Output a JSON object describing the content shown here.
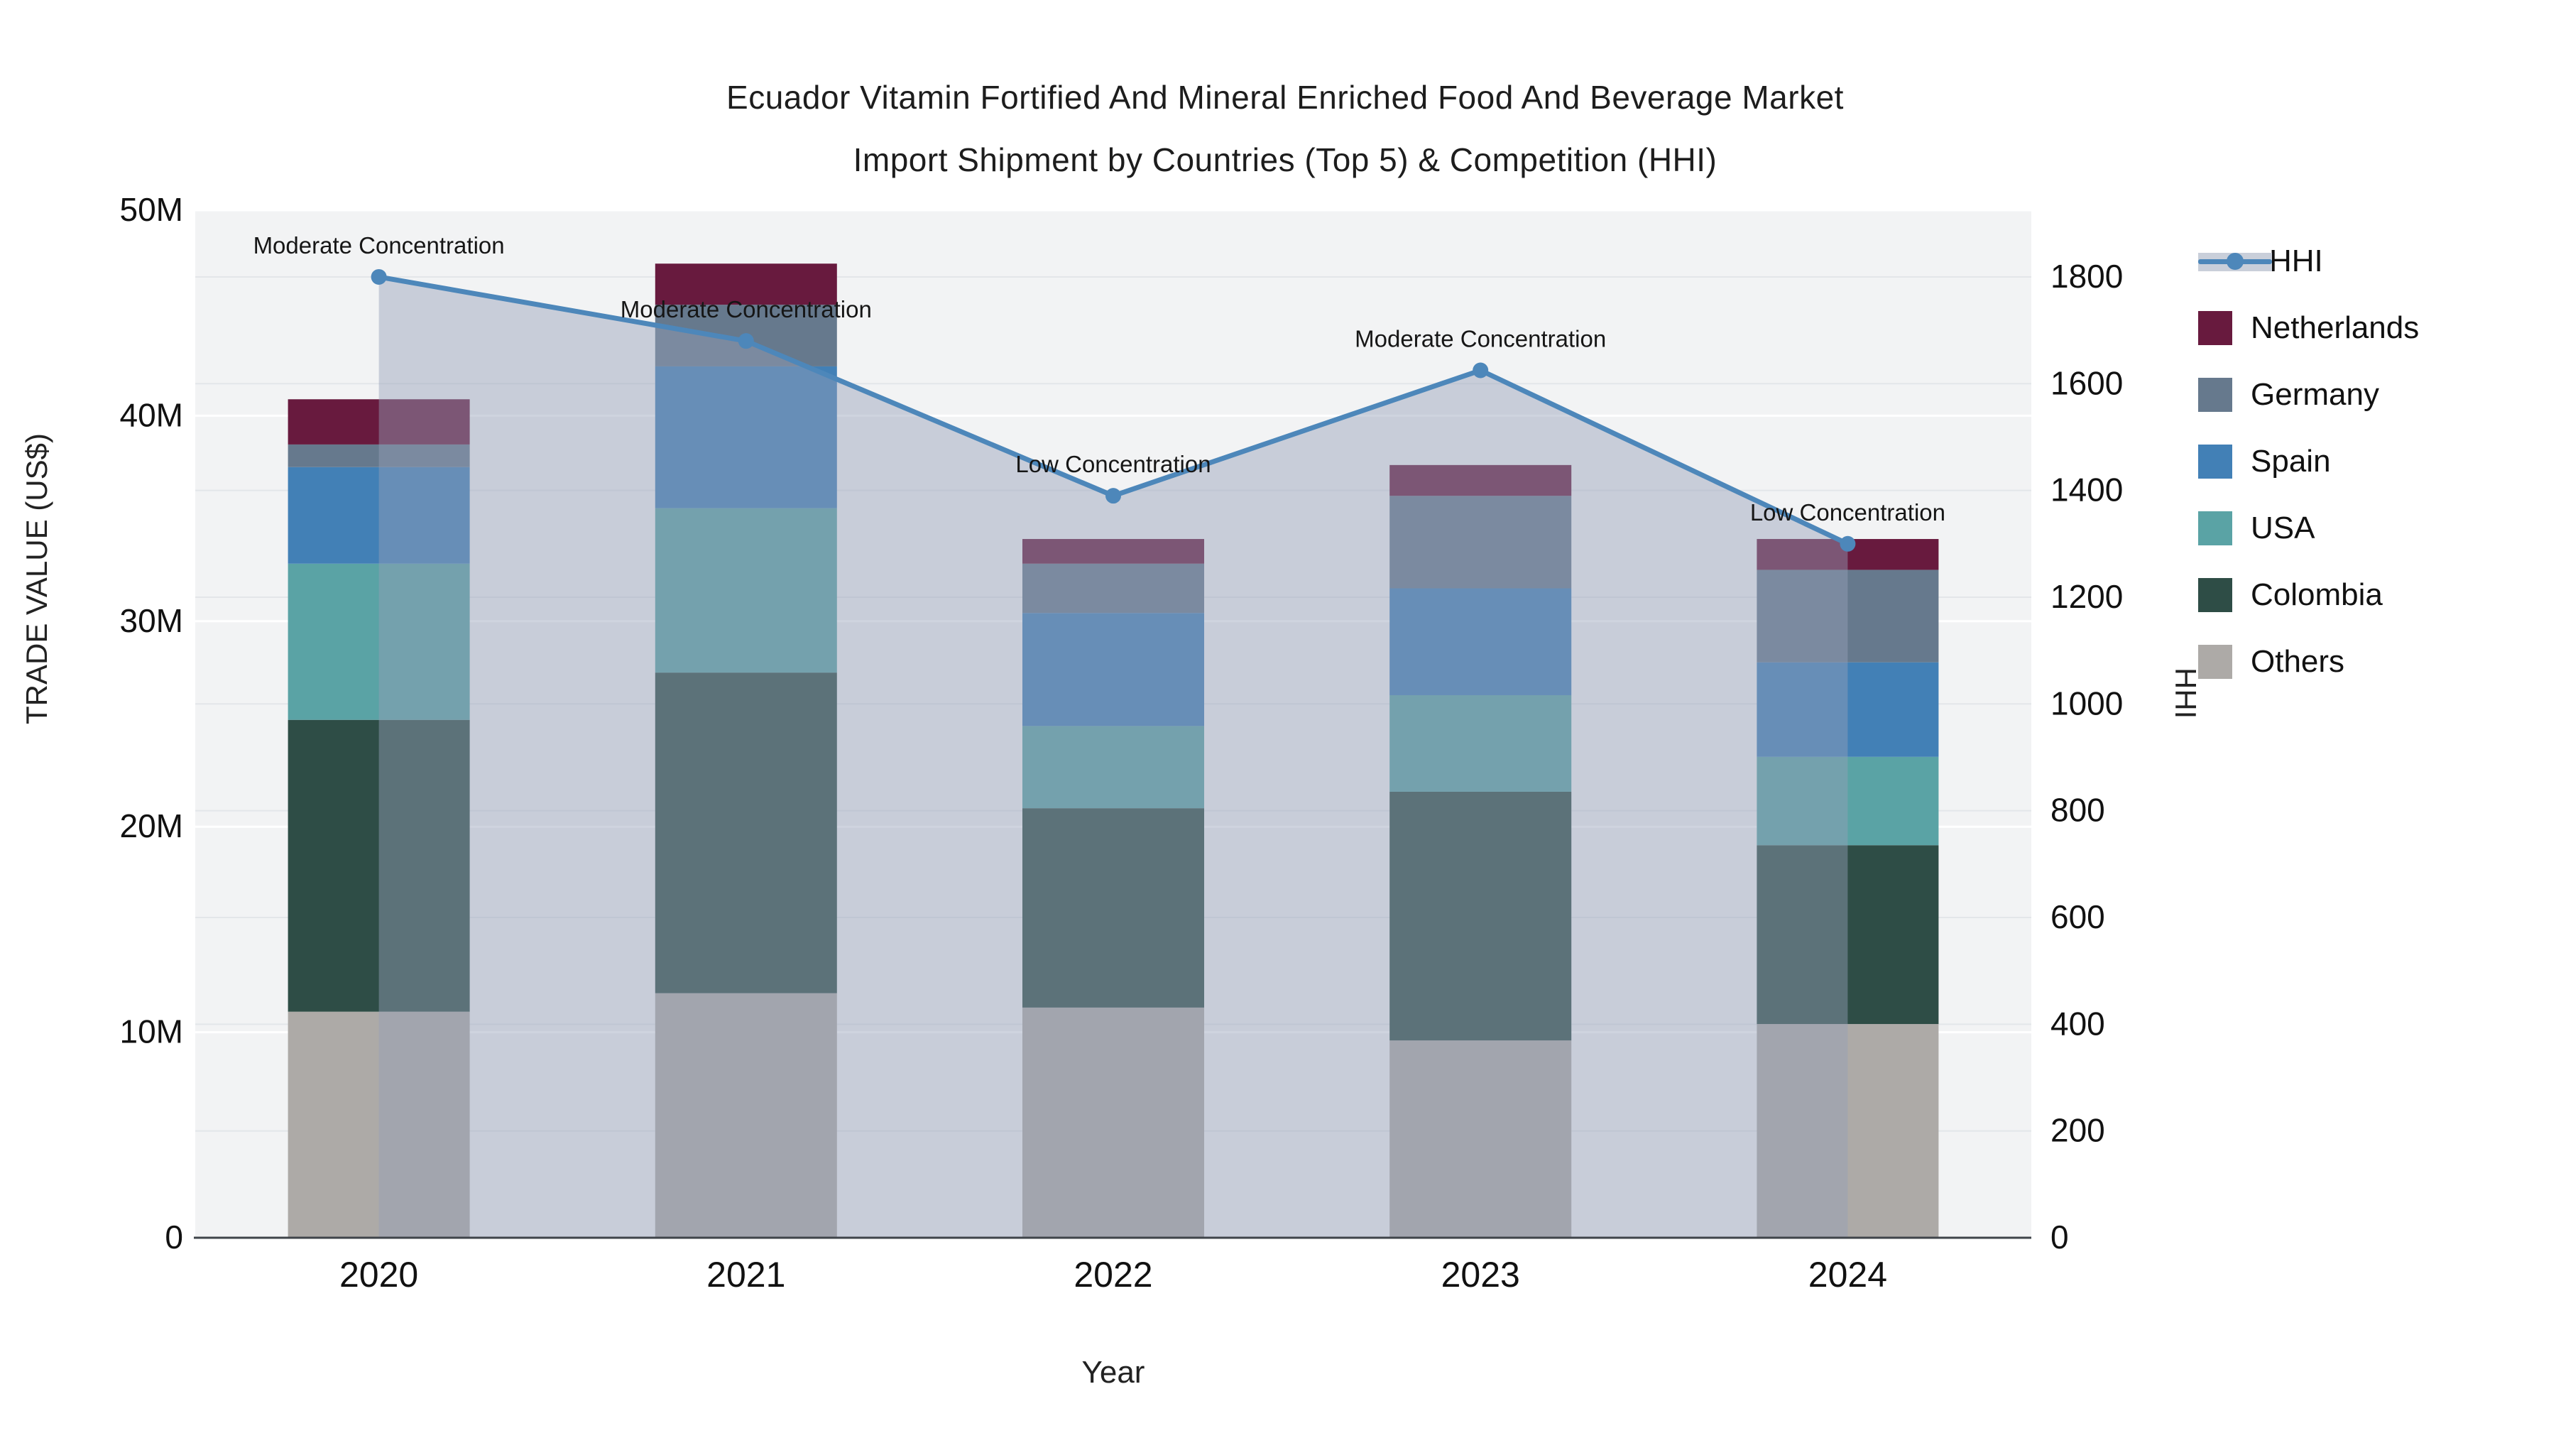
{
  "title": {
    "line1": "Ecuador Vitamin Fortified And Mineral Enriched Food And Beverage Market",
    "line2": "Import Shipment by Countries (Top 5) & Competition (HHI)"
  },
  "chart_data": {
    "type": "bar+line",
    "subtype": "stacked bars (left axis) with HHI line + shaded area (right axis)",
    "categories": [
      "2020",
      "2021",
      "2022",
      "2023",
      "2024"
    ],
    "series": [
      {
        "name": "Others",
        "color": "#adaaa7",
        "values": [
          11.0,
          11.9,
          11.2,
          9.6,
          10.4
        ]
      },
      {
        "name": "Colombia",
        "color": "#2e4d46",
        "values": [
          14.2,
          15.6,
          9.7,
          12.1,
          8.7
        ]
      },
      {
        "name": "USA",
        "color": "#5aa3a5",
        "values": [
          7.6,
          8.0,
          4.0,
          4.7,
          4.3
        ]
      },
      {
        "name": "Spain",
        "color": "#4280b6",
        "values": [
          4.7,
          6.9,
          5.5,
          5.2,
          4.6
        ]
      },
      {
        "name": "Germany",
        "color": "#66798d",
        "values": [
          1.1,
          3.0,
          2.4,
          4.5,
          4.5
        ]
      },
      {
        "name": "Netherlands",
        "color": "#681a3e",
        "values": [
          2.2,
          2.0,
          1.2,
          1.5,
          1.5
        ]
      }
    ],
    "bar_totals_musd": [
      40.8,
      47.4,
      34.0,
      37.6,
      34.0
    ],
    "line_series": {
      "name": "HHI",
      "color": "#4d87ba",
      "area_color": "rgba(148,160,184,0.45)",
      "values": [
        1800,
        1680,
        1390,
        1625,
        1300
      ]
    },
    "annotations": [
      {
        "year": "2020",
        "text": "Moderate Concentration"
      },
      {
        "year": "2021",
        "text": "Moderate Concentration"
      },
      {
        "year": "2022",
        "text": "Low Concentration"
      },
      {
        "year": "2023",
        "text": "Moderate Concentration"
      },
      {
        "year": "2024",
        "text": "Low Concentration"
      }
    ],
    "y_left": {
      "label": "TRADE VALUE (US$)",
      "ticks": [
        "0",
        "10M",
        "20M",
        "30M",
        "40M",
        "50M"
      ],
      "tick_values": [
        0,
        10,
        20,
        30,
        40,
        50
      ],
      "range": [
        0,
        50
      ]
    },
    "y_right": {
      "label": "HHI",
      "ticks": [
        "0",
        "200",
        "400",
        "600",
        "800",
        "1000",
        "1200",
        "1400",
        "1600",
        "1800"
      ],
      "tick_values": [
        0,
        200,
        400,
        600,
        800,
        1000,
        1200,
        1400,
        1600,
        1800
      ],
      "range": [
        0,
        1925
      ]
    },
    "x": {
      "label": "Year"
    },
    "grid": true,
    "legend_position": "right",
    "plot_bg": "#f2f3f4"
  },
  "legend": {
    "items": [
      {
        "label": "HHI",
        "color": "#4d87ba"
      },
      {
        "label": "Netherlands",
        "color": "#681a3e"
      },
      {
        "label": "Germany",
        "color": "#66798d"
      },
      {
        "label": "Spain",
        "color": "#4280b6"
      },
      {
        "label": "USA",
        "color": "#5aa3a5"
      },
      {
        "label": "Colombia",
        "color": "#2e4d46"
      },
      {
        "label": "Others",
        "color": "#adaaa7"
      }
    ]
  }
}
